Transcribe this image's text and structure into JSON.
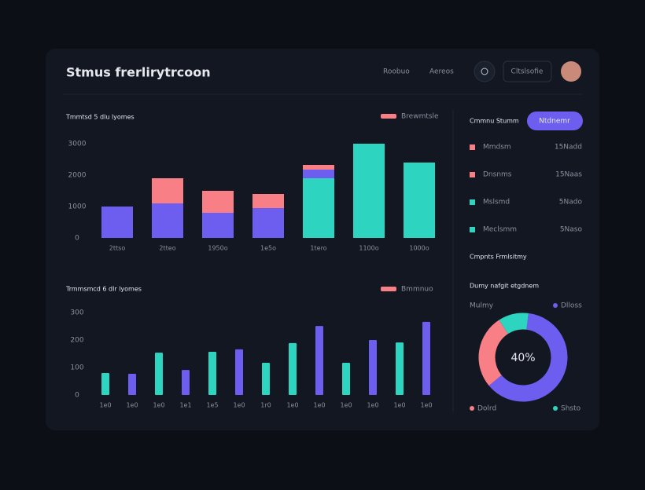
{
  "header": {
    "title": "Stmus frerlirytrcoon",
    "nav": [
      "Roobuo",
      "Aereos"
    ],
    "button": "Cltslsofie"
  },
  "charts": [
    {
      "type": "bar",
      "stacked": true,
      "title": "Tmmtsd 5 dlu lyomes",
      "categories": [
        "2ttso",
        "2tteo",
        "1950o",
        "1e5o",
        "1tero",
        "1100o",
        "1000o"
      ],
      "series": [
        {
          "color": "#2dd4bf",
          "values": [
            0,
            0,
            0,
            0,
            1900,
            3000,
            2400
          ]
        },
        {
          "color": "#6d5ef0",
          "values": [
            1000,
            1100,
            800,
            950,
            275,
            0,
            0
          ]
        },
        {
          "name": "Brewmtsle",
          "color": "#f87f86",
          "values": [
            0,
            800,
            700,
            450,
            150,
            0,
            0
          ]
        }
      ],
      "ylim": [
        0,
        3000
      ],
      "yticks": [
        0,
        1000,
        2000,
        3000
      ]
    },
    {
      "type": "bar",
      "title": "Trmmsmcd 6 dlr lyomes",
      "legend_label": "Bmmnuo",
      "legend_color": "#f87f86",
      "categories": [
        "1e0",
        "1e0",
        "1e0",
        "1e1",
        "1e5",
        "1e0",
        "1r0",
        "1e0",
        "1e0",
        "1e0",
        "1e0",
        "1e0",
        "1e0"
      ],
      "values": [
        80,
        77,
        154,
        91,
        157,
        166,
        117,
        189,
        251,
        117,
        200,
        191,
        266
      ],
      "colors": [
        "#2dd4bf",
        "#6d5ef0",
        "#2dd4bf",
        "#6d5ef0",
        "#2dd4bf",
        "#6d5ef0",
        "#2dd4bf",
        "#2dd4bf",
        "#6d5ef0",
        "#2dd4bf",
        "#6d5ef0",
        "#2dd4bf",
        "#6d5ef0"
      ],
      "ylim": [
        0,
        300
      ],
      "yticks": [
        0,
        100,
        200,
        300
      ]
    }
  ],
  "side": {
    "title": "Cmmnu Stumm",
    "button": "Ntdnemr",
    "items": [
      {
        "label": "Mmdsm",
        "value": "15Nadd",
        "color": "#f87f86"
      },
      {
        "label": "Dnsnms",
        "value": "15Naas",
        "color": "#f87f86"
      },
      {
        "label": "Mslsmd",
        "value": "5Nado",
        "color": "#2dd4bf"
      },
      {
        "label": "Meclsmm",
        "value": "5Naso",
        "color": "#2dd4bf"
      }
    ],
    "subtitle": "Cmpnts Frmlsitmy",
    "donut": {
      "type": "pie",
      "title": "Dumy nafgit etgdnem",
      "subtitle": "Mulmy",
      "center_label": "40%",
      "categories": [
        "Dlloss",
        "Dolrd",
        "Shsto"
      ],
      "values": [
        62,
        27,
        11
      ],
      "colors": [
        "#6d5ef0",
        "#f87f86",
        "#2dd4bf"
      ]
    }
  }
}
